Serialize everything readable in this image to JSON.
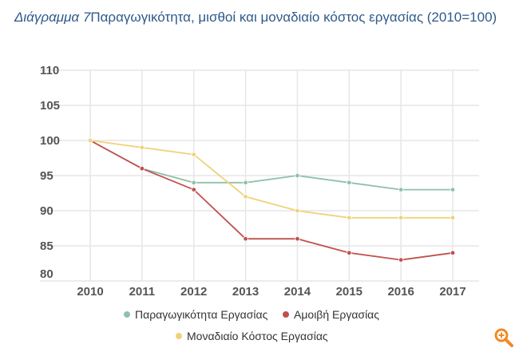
{
  "title": {
    "prefix": "Διάγραμμα 7",
    "text": "Παραγωγικότητα, μισθοί και μοναδιαίο κόστος εργασίας (2010=100)"
  },
  "chart_data": {
    "type": "line",
    "title": "Διάγραμμα 7Παραγωγικότητα, μισθοί και μοναδιαίο κόστος εργασίας (2010=100)",
    "categories": [
      "2010",
      "2011",
      "2012",
      "2013",
      "2014",
      "2015",
      "2016",
      "2017"
    ],
    "ylim": [
      80,
      110
    ],
    "yticks": [
      "80",
      "85",
      "90",
      "95",
      "100",
      "105",
      "110"
    ],
    "grid": true,
    "legend_placement": "bottom",
    "series": [
      {
        "name": "Παραγωγικότητα Εργασίας",
        "color": "#8fc1a9",
        "values": [
          100,
          96,
          94,
          94,
          95,
          94,
          93,
          93
        ]
      },
      {
        "name": "Αμοιβή Εργασίας",
        "color": "#c0504d",
        "values": [
          100,
          96,
          93,
          86,
          86,
          84,
          83,
          84
        ]
      },
      {
        "name": "Μοναδιαίο Κόστος Εργασίας",
        "color": "#f0d27a",
        "values": [
          100,
          99,
          98,
          92,
          90,
          89,
          89,
          89
        ]
      }
    ]
  },
  "icons": {
    "zoom": "zoom-in-icon",
    "zoom_color": "#f08a24"
  }
}
